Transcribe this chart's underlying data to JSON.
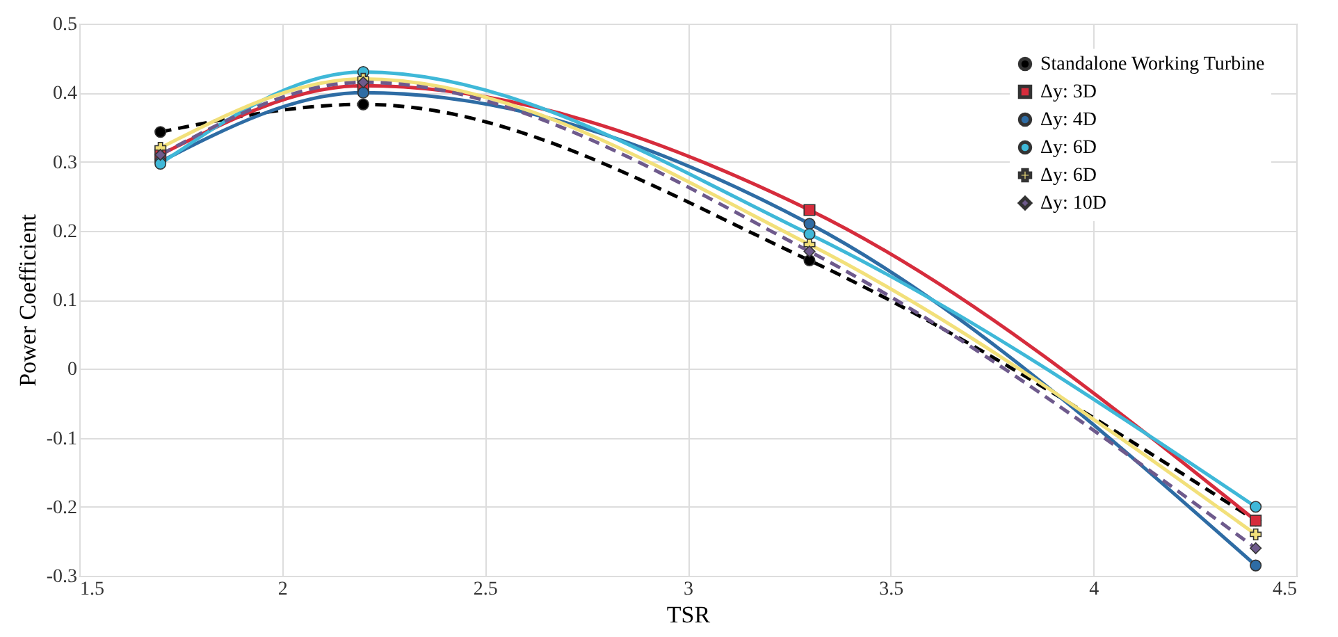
{
  "chart_data": {
    "type": "line",
    "xlabel": "TSR",
    "ylabel": "Power Coefficient",
    "x": [
      1.7,
      2.2,
      3.3,
      4.4
    ],
    "xlim": [
      1.5,
      4.5
    ],
    "xticks": [
      1.5,
      2,
      2.5,
      3,
      3.5,
      4,
      4.5
    ],
    "ylim": [
      -0.3,
      0.5
    ],
    "yticks": [
      -0.3,
      -0.2,
      -0.1,
      0,
      0.1,
      0.2,
      0.3,
      0.4,
      0.5
    ],
    "grid": true,
    "legend": "top right",
    "series": [
      {
        "name": "Standalone Working Turbine",
        "color": "#000000",
        "values": [
          0.343,
          0.383,
          0.157,
          -0.22
        ],
        "line_style": "dashed",
        "marker": "circle"
      },
      {
        "name": "Δy: 3D",
        "color": "#d62c3c",
        "values": [
          0.31,
          0.41,
          0.23,
          -0.22
        ],
        "line_style": "solid",
        "marker": "square"
      },
      {
        "name": "Δy: 4D",
        "color": "#2e6ca4",
        "values": [
          0.3,
          0.4,
          0.21,
          -0.285
        ],
        "line_style": "solid",
        "marker": "circle"
      },
      {
        "name": "Δy: 6D",
        "color": "#3fb8d8",
        "values": [
          0.297,
          0.43,
          0.195,
          -0.2
        ],
        "line_style": "solid",
        "marker": "circle"
      },
      {
        "name": "Δy: 6D",
        "color": "#f2e07a",
        "values": [
          0.32,
          0.42,
          0.18,
          -0.24
        ],
        "line_style": "solid",
        "marker": "cross"
      },
      {
        "name": "Δy: 10D",
        "color": "#6e5a8c",
        "values": [
          0.31,
          0.415,
          0.17,
          -0.26
        ],
        "line_style": "dashed",
        "marker": "diamond"
      }
    ]
  }
}
